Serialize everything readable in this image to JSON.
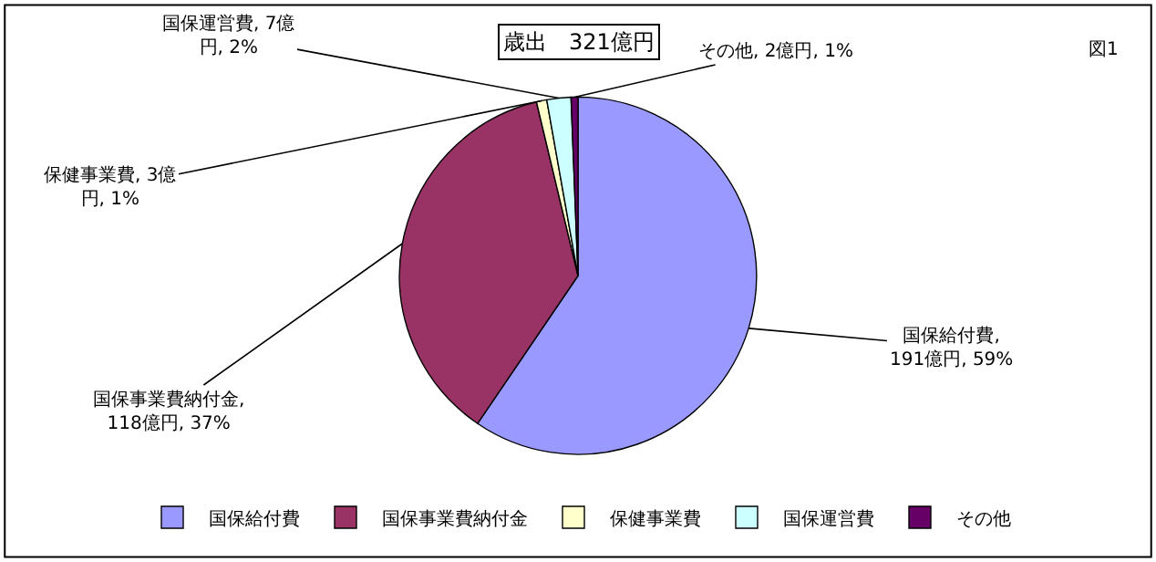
{
  "chart_data": {
    "type": "pie",
    "title": "歳出　321億円",
    "categories": [
      "国保給付費",
      "国保事業費納付金",
      "保健事業費",
      "国保運営費",
      "その他"
    ],
    "values": [
      191,
      118,
      3,
      7,
      2
    ],
    "value_labels": [
      "国保給付費, 191億円, 59%",
      "国保事業費納付金, 118億円, 37%",
      "保健事業費, 3億円, 1%",
      "国保運営費, 7億円, 2%",
      "その他, 2億円, 1%"
    ],
    "colors": [
      "#9999ff",
      "#993366",
      "#ffffcc",
      "#ccffff",
      "#660066"
    ],
    "annotations": [
      "図1"
    ],
    "legend": "bottom"
  }
}
